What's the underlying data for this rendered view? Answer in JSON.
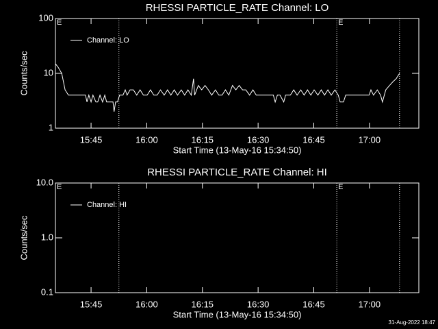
{
  "chart_data": [
    {
      "type": "line",
      "title": "RHESSI PARTICLE_RATE Channel: LO",
      "xlabel": "Start Time (13-May-16 15:34:50)",
      "ylabel": "Counts/sec",
      "log_y": true,
      "legend": "upper left",
      "xlim": [
        935.4,
        1033.3
      ],
      "ylim": [
        1,
        100
      ],
      "xticks": [
        {
          "value": 945,
          "label": "15:45"
        },
        {
          "value": 960,
          "label": "16:00"
        },
        {
          "value": 975,
          "label": "16:15"
        },
        {
          "value": 990,
          "label": "16:30"
        },
        {
          "value": 1005,
          "label": "16:45"
        },
        {
          "value": 1020,
          "label": "17:00"
        }
      ],
      "yticks": [
        1,
        10,
        100
      ],
      "vlines": [
        952.5,
        1011.2,
        1028.1
      ],
      "annotations": [
        {
          "text": "E",
          "x": 935.4
        },
        {
          "text": "E",
          "x": 1011.2
        }
      ],
      "x": [
        935.4,
        936.1,
        937.1,
        938.0,
        938.9,
        943.5,
        943.9,
        944.4,
        945.0,
        945.5,
        946.3,
        946.8,
        947.4,
        948.1,
        948.7,
        949.2,
        949.9,
        950.9,
        951.2,
        951.6,
        952.1,
        952.7,
        953.6,
        954.2,
        954.7,
        955.5,
        956.4,
        957.3,
        958.2,
        959.1,
        960.1,
        961.0,
        961.9,
        962.8,
        963.7,
        964.7,
        965.6,
        966.5,
        967.4,
        968.3,
        969.3,
        970.2,
        971.1,
        972.0,
        972.6,
        972.9,
        973.9,
        974.8,
        975.7,
        976.6,
        977.5,
        978.5,
        979.4,
        980.3,
        981.2,
        982.1,
        983.1,
        984.0,
        984.9,
        985.8,
        986.7,
        987.7,
        988.6,
        989.5,
        990.4,
        992.2,
        994.1,
        994.6,
        995.2,
        995.9,
        996.9,
        997.4,
        997.8,
        998.7,
        999.6,
        1000.5,
        1001.5,
        1002.4,
        1003.3,
        1004.2,
        1005.1,
        1006.1,
        1007.0,
        1007.9,
        1008.8,
        1009.7,
        1010.7,
        1011.6,
        1012.1,
        1013.0,
        1013.6,
        1014.3,
        1019.9,
        1020.4,
        1021.1,
        1022.1,
        1023.0,
        1023.5,
        1024.4,
        1025.4,
        1026.3,
        1027.2,
        1028.1
      ],
      "series": [
        {
          "name": "Channel: LO",
          "color": "#ffffff",
          "values": [
            15,
            13,
            10,
            5,
            4,
            4,
            3,
            4,
            3,
            4,
            3,
            3,
            4,
            3,
            4,
            3,
            3,
            3,
            2,
            3,
            3,
            4,
            4,
            5,
            4,
            5,
            5,
            4,
            5,
            4,
            4,
            5,
            4,
            4,
            5,
            4,
            5,
            4,
            5,
            4,
            5,
            4,
            5,
            4,
            8,
            4,
            6,
            5,
            6,
            5,
            4,
            5,
            4,
            4,
            5,
            4,
            6,
            5,
            6,
            5,
            5,
            4,
            5,
            4,
            4,
            4,
            4,
            3,
            4,
            4,
            3,
            4,
            4,
            4,
            5,
            4,
            5,
            4,
            5,
            4,
            5,
            4,
            5,
            4,
            5,
            4,
            5,
            4,
            3,
            3,
            4,
            4,
            4,
            5,
            4,
            5,
            4,
            3,
            5,
            6,
            7,
            8,
            10
          ]
        }
      ]
    },
    {
      "type": "line",
      "title": "RHESSI PARTICLE_RATE Channel: HI",
      "xlabel": "Start Time (13-May-16 15:34:50)",
      "ylabel": "Counts/sec",
      "log_y": true,
      "legend": "upper left",
      "xlim": [
        935.4,
        1033.3
      ],
      "ylim": [
        0.1,
        10
      ],
      "xticks": [
        {
          "value": 945,
          "label": "15:45"
        },
        {
          "value": 960,
          "label": "16:00"
        },
        {
          "value": 975,
          "label": "16:15"
        },
        {
          "value": 990,
          "label": "16:30"
        },
        {
          "value": 1005,
          "label": "16:45"
        },
        {
          "value": 1020,
          "label": "17:00"
        }
      ],
      "yticks": [
        0.1,
        {
          "value": 1,
          "label": "1.0"
        },
        {
          "value": 10,
          "label": "10.0"
        }
      ],
      "vlines": [
        952.5,
        1011.2,
        1028.1
      ],
      "annotations": [
        {
          "text": "E",
          "x": 935.4
        },
        {
          "text": "E",
          "x": 1011.2
        }
      ],
      "x": [],
      "series": [
        {
          "name": "Channel: HI",
          "color": "#ffffff",
          "values": []
        }
      ]
    }
  ],
  "footer": "31-Aug-2022 18:47"
}
